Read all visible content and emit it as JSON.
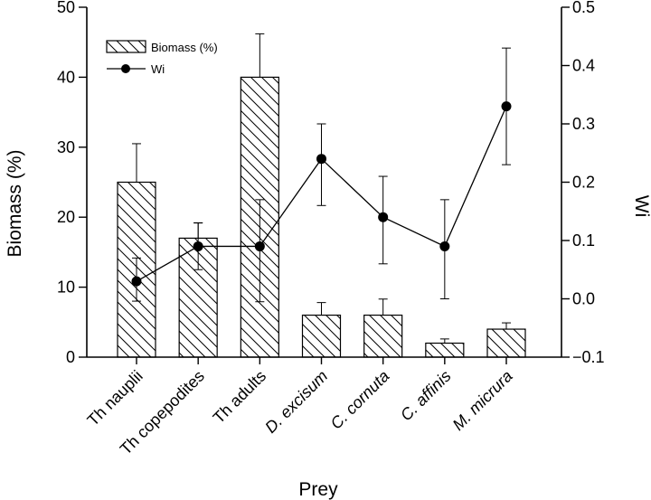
{
  "chart_data": {
    "type": "bar",
    "categories": [
      "Th nauplii",
      "Th copepodites",
      "Th adults",
      "D. excisum",
      "C. cornuta",
      "C. affinis",
      "M. micrura"
    ],
    "category_italic": [
      false,
      false,
      false,
      true,
      true,
      true,
      true
    ],
    "xlabel": "Prey",
    "ylabel_left": "Biomass  (%)",
    "ylabel_right": "Wi",
    "ylim_left": [
      0,
      50
    ],
    "ylim_right": [
      -0.1,
      0.5
    ],
    "yticks_left": [
      "0",
      "10",
      "20",
      "30",
      "40",
      "50"
    ],
    "yticks_right": [
      "-0.1",
      "0.0",
      "0.1",
      "0.2",
      "0.3",
      "0.4",
      "0.5"
    ],
    "grid": false,
    "legend_position": "top-left",
    "series": [
      {
        "name": "Biomass (%)",
        "kind": "bar",
        "axis": "left",
        "values": [
          25,
          17,
          40,
          6,
          6,
          2,
          4
        ],
        "error_high": [
          30.5,
          19.2,
          46.2,
          7.8,
          8.3,
          2.6,
          4.9
        ],
        "error_low": [
          25,
          17,
          40,
          6,
          6,
          2,
          4
        ]
      },
      {
        "name": "Wi",
        "kind": "line",
        "axis": "right",
        "values": [
          0.03,
          0.09,
          0.09,
          0.24,
          0.14,
          0.09,
          0.33
        ],
        "error_high": [
          0.07,
          0.13,
          0.17,
          0.3,
          0.21,
          0.17,
          0.43
        ],
        "error_low": [
          -0.004,
          0.05,
          -0.005,
          0.16,
          0.06,
          0.0,
          0.23
        ]
      }
    ]
  }
}
